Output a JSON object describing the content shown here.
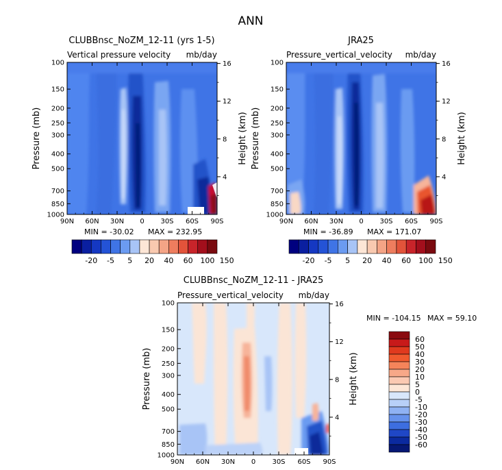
{
  "figure": {
    "title": "ANN"
  },
  "chart_data": [
    {
      "type": "heatmap",
      "title": "CLUBBnsc_NoZM_12-11 (yrs 1-5)",
      "subtitle_left": "Vertical pressure velocity",
      "subtitle_right": "mb/day",
      "ylabel": "Pressure (mb)",
      "ylabel_right": "Height (km)",
      "x_ticks": [
        "90N",
        "60N",
        "30N",
        "0",
        "30S",
        "60S",
        "90S"
      ],
      "y_ticks": [
        "100",
        "150",
        "200",
        "250",
        "300",
        "400",
        "500",
        "700",
        "850",
        "1000"
      ],
      "y_ticks_right": [
        "16",
        "12",
        "8",
        "4"
      ],
      "xlim": [
        90,
        -90
      ],
      "ylim": [
        1000,
        100
      ],
      "min_label": "MIN = -30.02",
      "max_label": "MAX = 232.95",
      "colorbar": [
        "-20",
        "-5",
        "5",
        "20",
        "40",
        "60",
        "100",
        "150"
      ]
    },
    {
      "type": "heatmap",
      "title": "JRA25",
      "subtitle_left": "Pressure_vertical_velocity",
      "subtitle_right": "mb/day",
      "ylabel": "Pressure (mb)",
      "ylabel_right": "Height (km)",
      "x_ticks": [
        "90N",
        "60N",
        "30N",
        "0",
        "30S",
        "60S",
        "90S"
      ],
      "y_ticks": [
        "100",
        "150",
        "200",
        "250",
        "300",
        "400",
        "500",
        "700",
        "850",
        "1000"
      ],
      "y_ticks_right": [
        "16",
        "12",
        "8",
        "4"
      ],
      "xlim": [
        90,
        -90
      ],
      "ylim": [
        1000,
        100
      ],
      "min_label": "MIN = -36.89",
      "max_label": "MAX = 171.07",
      "colorbar": [
        "-20",
        "-5",
        "5",
        "20",
        "40",
        "60",
        "100",
        "150"
      ]
    },
    {
      "type": "heatmap",
      "title": "CLUBBnsc_NoZM_12-11 - JRA25",
      "subtitle_left": "Pressure_vertical_velocity",
      "subtitle_right": "mb/day",
      "ylabel": "Pressure (mb)",
      "ylabel_right": "Height (km)",
      "x_ticks": [
        "90N",
        "60N",
        "30N",
        "0",
        "30S",
        "60S",
        "90S"
      ],
      "y_ticks": [
        "100",
        "150",
        "200",
        "250",
        "300",
        "400",
        "500",
        "700",
        "850",
        "1000"
      ],
      "y_ticks_right": [
        "16",
        "12",
        "8",
        "4"
      ],
      "xlim": [
        90,
        -90
      ],
      "ylim": [
        1000,
        100
      ],
      "min_label": "MIN = -104.15",
      "max_label": "MAX =  59.10",
      "colorbar": [
        "60",
        "50",
        "40",
        "30",
        "20",
        "10",
        "5",
        "0",
        "-5",
        "-10",
        "-20",
        "-30",
        "-40",
        "-50",
        "-60"
      ]
    }
  ]
}
